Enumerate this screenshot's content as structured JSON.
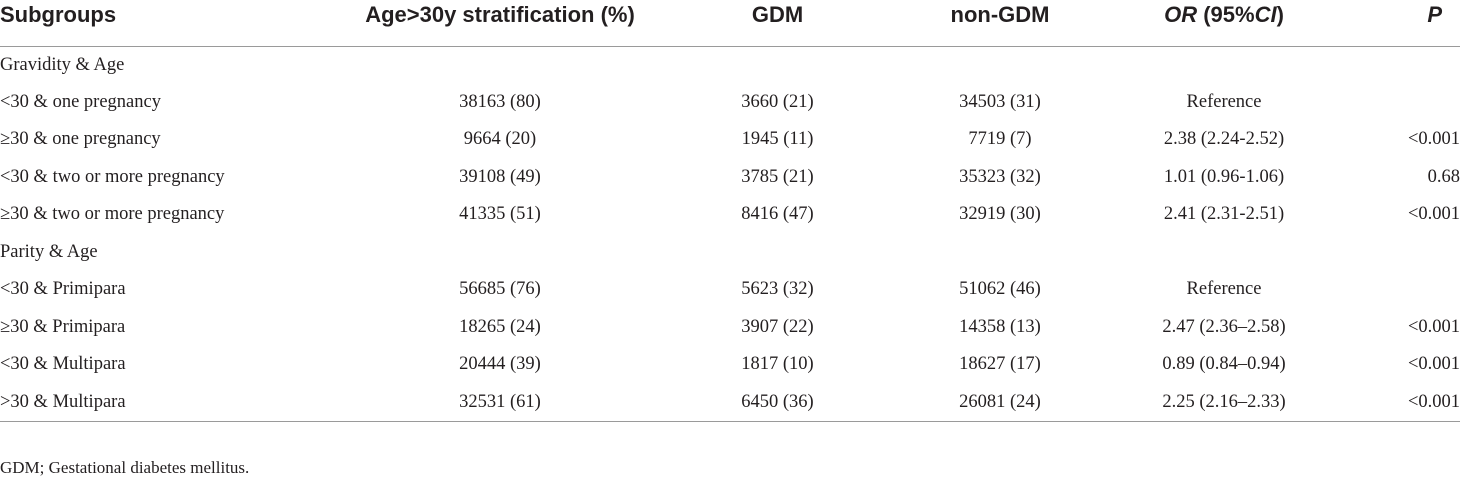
{
  "table": {
    "headers": {
      "subgroups": "Subgroups",
      "stratification": "Age>30y stratification (%)",
      "gdm": "GDM",
      "non_gdm": "non-GDM",
      "or_italic": "OR",
      "or_paren_open": " (95%",
      "or_ci_italic": "CI",
      "or_paren_close": ")",
      "p": "P"
    },
    "groups": [
      {
        "label": "Gravidity & Age",
        "rows": [
          {
            "subgroup": "<30 & one pregnancy",
            "strat": "38163 (80)",
            "gdm": "3660 (21)",
            "non_gdm": "34503 (31)",
            "or": "Reference",
            "p": ""
          },
          {
            "subgroup": "≥30 & one pregnancy",
            "strat": "9664 (20)",
            "gdm": "1945 (11)",
            "non_gdm": "7719 (7)",
            "or": "2.38 (2.24-2.52)",
            "p": "<0.001"
          },
          {
            "subgroup": "<30 & two or more pregnancy",
            "strat": "39108 (49)",
            "gdm": "3785 (21)",
            "non_gdm": "35323 (32)",
            "or": "1.01 (0.96-1.06)",
            "p": "0.68"
          },
          {
            "subgroup": "≥30 & two or more pregnancy",
            "strat": "41335 (51)",
            "gdm": "8416 (47)",
            "non_gdm": "32919 (30)",
            "or": "2.41 (2.31-2.51)",
            "p": "<0.001"
          }
        ]
      },
      {
        "label": "Parity & Age",
        "rows": [
          {
            "subgroup": "<30 & Primipara",
            "strat": "56685 (76)",
            "gdm": "5623 (32)",
            "non_gdm": "51062 (46)",
            "or": "Reference",
            "p": ""
          },
          {
            "subgroup": "≥30 & Primipara",
            "strat": "18265 (24)",
            "gdm": "3907 (22)",
            "non_gdm": "14358 (13)",
            "or": "2.47 (2.36–2.58)",
            "p": "<0.001"
          },
          {
            "subgroup": "<30 & Multipara",
            "strat": "20444 (39)",
            "gdm": "1817 (10)",
            "non_gdm": "18627 (17)",
            "or": "0.89 (0.84–0.94)",
            "p": "<0.001"
          },
          {
            "subgroup": ">30 & Multipara",
            "strat": "32531 (61)",
            "gdm": "6450 (36)",
            "non_gdm": "26081 (24)",
            "or": "2.25 (2.16–2.33)",
            "p": "<0.001"
          }
        ]
      }
    ]
  },
  "footnote": "GDM; Gestational diabetes mellitus."
}
